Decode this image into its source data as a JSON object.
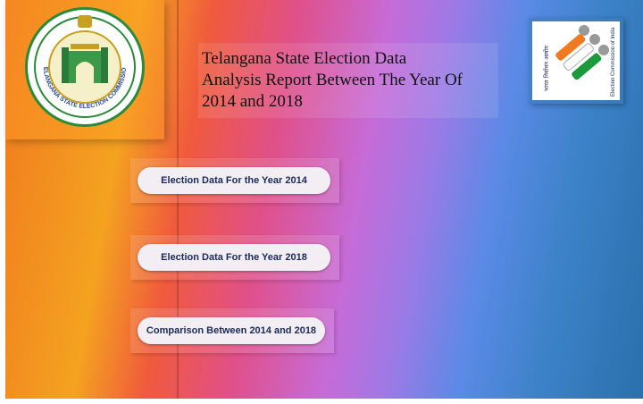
{
  "header": {
    "title": "Telangana State Election Data\nAnalysis Report Between The Year Of\n2014 and 2018"
  },
  "logos": {
    "state_commission": "TELANGANA STATE ELECTION COMMISSION",
    "eci_name": "Election Commission of India",
    "eci_hindi": "भारत निर्वाचन आयोग"
  },
  "buttons": [
    {
      "label": "Election Data For the Year 2014"
    },
    {
      "label": "Election Data For the Year 2018"
    },
    {
      "label": "Comparison Between 2014 and 2018"
    }
  ],
  "colors": {
    "button_bg": "#f3eef3",
    "button_text": "#1a2a5a",
    "seal_green": "#2a8a3a"
  }
}
